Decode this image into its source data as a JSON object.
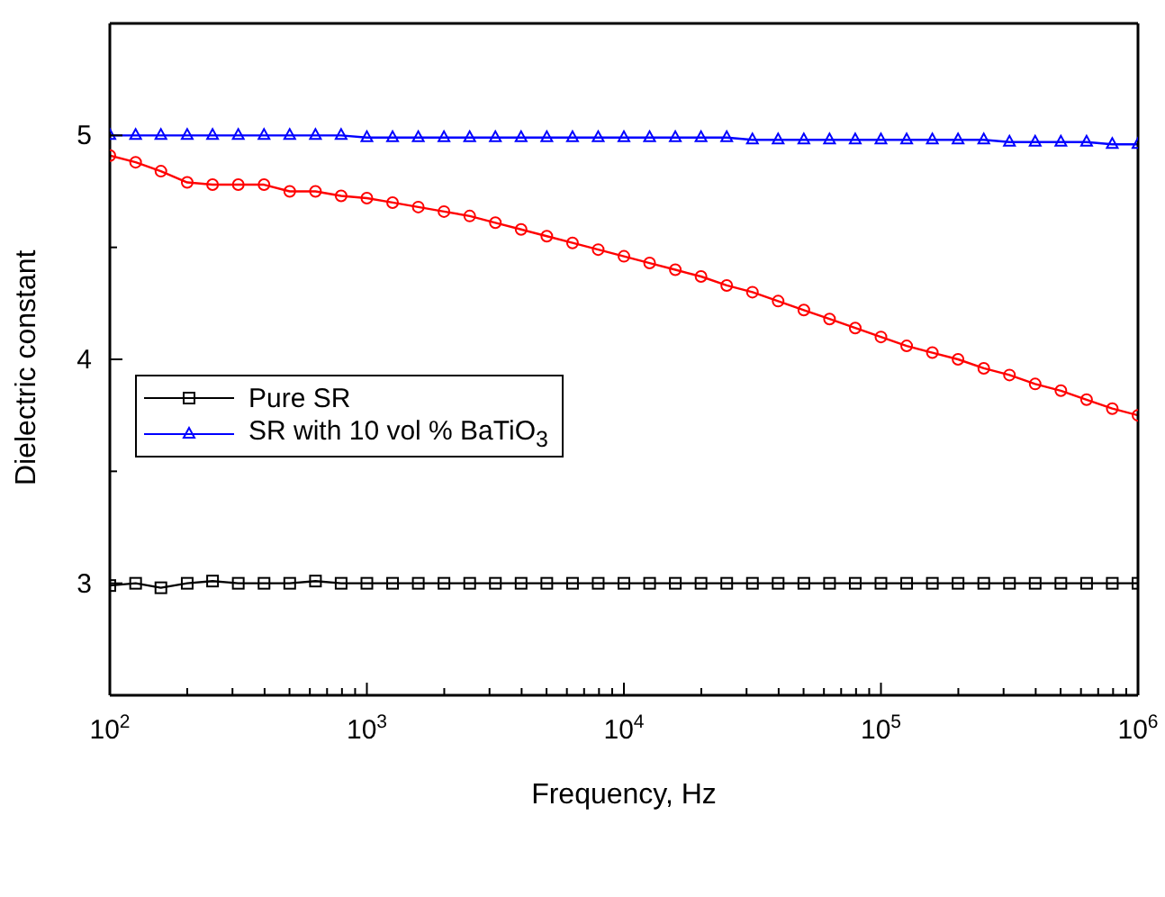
{
  "chart_data": {
    "type": "line",
    "xlabel": "Frequency, Hz",
    "ylabel": "Dielectric constant",
    "log": "x",
    "legend": "left",
    "line_style": "solid",
    "xlim": [
      100,
      1000000
    ],
    "xticks": [
      {
        "value": 100,
        "label": "10$^{2}$"
      },
      {
        "value": 200,
        "label": null
      },
      {
        "value": 300,
        "label": null
      },
      {
        "value": 400,
        "label": null
      },
      {
        "value": 500,
        "label": null
      },
      {
        "value": 600,
        "label": null
      },
      {
        "value": 700,
        "label": null
      },
      {
        "value": 800,
        "label": null
      },
      {
        "value": 900,
        "label": null
      },
      {
        "value": 1000,
        "label": "10$^{3}$"
      },
      {
        "value": 2000,
        "label": null
      },
      {
        "value": 3000,
        "label": null
      },
      {
        "value": 4000,
        "label": null
      },
      {
        "value": 5000,
        "label": null
      },
      {
        "value": 6000,
        "label": null
      },
      {
        "value": 7000,
        "label": null
      },
      {
        "value": 8000,
        "label": null
      },
      {
        "value": 9000,
        "label": null
      },
      {
        "value": 10000,
        "label": "10$^{4}$"
      },
      {
        "value": 20000,
        "label": null
      },
      {
        "value": 30000,
        "label": null
      },
      {
        "value": 40000,
        "label": null
      },
      {
        "value": 50000,
        "label": null
      },
      {
        "value": 60000,
        "label": null
      },
      {
        "value": 70000,
        "label": null
      },
      {
        "value": 80000,
        "label": null
      },
      {
        "value": 90000,
        "label": null
      },
      {
        "value": 100000,
        "label": "10$^{5}$"
      },
      {
        "value": 200000,
        "label": null
      },
      {
        "value": 300000,
        "label": null
      },
      {
        "value": 400000,
        "label": null
      },
      {
        "value": 500000,
        "label": null
      },
      {
        "value": 600000,
        "label": null
      },
      {
        "value": 700000,
        "label": null
      },
      {
        "value": 800000,
        "label": null
      },
      {
        "value": 900000,
        "label": null
      },
      {
        "value": 1000000,
        "label": "10$^{6}$"
      }
    ],
    "ylim": [
      2.5,
      5.5
    ],
    "yticks": [
      3,
      {
        "value": 3.5,
        "label": null
      },
      4,
      {
        "value": 4.5,
        "label": null
      },
      5
    ],
    "x": [
      100,
      126,
      158,
      200,
      251,
      316,
      398,
      501,
      631,
      794,
      1000,
      1259,
      1585,
      1995,
      2512,
      3162,
      3981,
      5012,
      6310,
      7943,
      10000,
      12589,
      15849,
      19953,
      25119,
      31623,
      39811,
      50119,
      63096,
      79433,
      100000,
      125893,
      158489,
      199526,
      251189,
      316228,
      398107,
      501187,
      630957,
      794328,
      1000000
    ],
    "series": [
      {
        "name": "Pure SR",
        "color": "#000000",
        "marker": "square",
        "values": [
          2.99,
          3.0,
          2.98,
          3.0,
          3.01,
          3.0,
          3.0,
          3.0,
          3.01,
          3.0,
          3.0,
          3.0,
          3.0,
          3.0,
          3.0,
          3.0,
          3.0,
          3.0,
          3.0,
          3.0,
          3.0,
          3.0,
          3.0,
          3.0,
          3.0,
          3.0,
          3.0,
          3.0,
          3.0,
          3.0,
          3.0,
          3.0,
          3.0,
          3.0,
          3.0,
          3.0,
          3.0,
          3.0,
          3.0,
          3.0,
          3.0
        ]
      },
      {
        "color": "#ff0000",
        "marker": "circle",
        "values": [
          4.91,
          4.88,
          4.84,
          4.79,
          4.78,
          4.78,
          4.78,
          4.75,
          4.75,
          4.73,
          4.72,
          4.7,
          4.68,
          4.66,
          4.64,
          4.61,
          4.58,
          4.55,
          4.52,
          4.49,
          4.46,
          4.43,
          4.4,
          4.37,
          4.33,
          4.3,
          4.26,
          4.22,
          4.18,
          4.14,
          4.1,
          4.06,
          4.03,
          4.0,
          3.96,
          3.93,
          3.89,
          3.86,
          3.82,
          3.78,
          3.75
        ]
      },
      {
        "name": "SR with 10 vol % BaTiO$_{3}$",
        "color": "#0000ff",
        "marker": "triangle",
        "values": [
          5.0,
          5.0,
          5.0,
          5.0,
          5.0,
          5.0,
          5.0,
          5.0,
          5.0,
          5.0,
          4.99,
          4.99,
          4.99,
          4.99,
          4.99,
          4.99,
          4.99,
          4.99,
          4.99,
          4.99,
          4.99,
          4.99,
          4.99,
          4.99,
          4.99,
          4.98,
          4.98,
          4.98,
          4.98,
          4.98,
          4.98,
          4.98,
          4.98,
          4.98,
          4.98,
          4.97,
          4.97,
          4.97,
          4.97,
          4.96,
          4.96
        ]
      }
    ]
  }
}
